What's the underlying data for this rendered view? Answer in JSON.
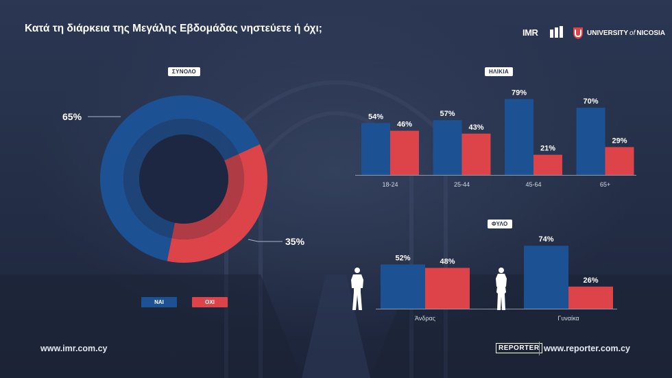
{
  "title": "Κατά τη διάρκεια της Μεγάλης Εβδομάδας νηστεύετε ή όχι;",
  "logos": {
    "imr": "IMR",
    "university": "UNIVERSITY",
    "of": "of",
    "nicosia": "NICOSIA"
  },
  "footer": {
    "left_url": "www.imr.com.cy",
    "reporter_logo": "REPORTER",
    "right_url": "www.reporter.com.cy"
  },
  "colors": {
    "yes": "#1c5293",
    "no": "#dc4449",
    "background": "#25304a"
  },
  "chart_data": [
    {
      "type": "pie",
      "badge": "ΣΥΝΟΛΟ",
      "labels": [
        "ΝΑΙ",
        "ΟΧΙ"
      ],
      "values": [
        65,
        35
      ],
      "value_labels": [
        "65%",
        "35%"
      ],
      "legend": [
        "ΝΑΙ",
        "ΟΧΙ"
      ]
    },
    {
      "type": "bar",
      "badge": "ΗΛΙΚΙΑ",
      "categories": [
        "18-24",
        "25-44",
        "45-64",
        "65+"
      ],
      "series": [
        {
          "values": [
            54,
            57,
            79,
            70
          ]
        },
        {
          "values": [
            46,
            43,
            21,
            29
          ]
        }
      ],
      "ylim": [
        0,
        100
      ]
    },
    {
      "type": "bar",
      "badge": "ΦΥΛΟ",
      "categories": [
        "Άνδρας",
        "Γυναίκα"
      ],
      "series": [
        {
          "values": [
            52,
            74
          ]
        },
        {
          "values": [
            48,
            26
          ]
        }
      ],
      "ylim": [
        0,
        100
      ]
    }
  ]
}
